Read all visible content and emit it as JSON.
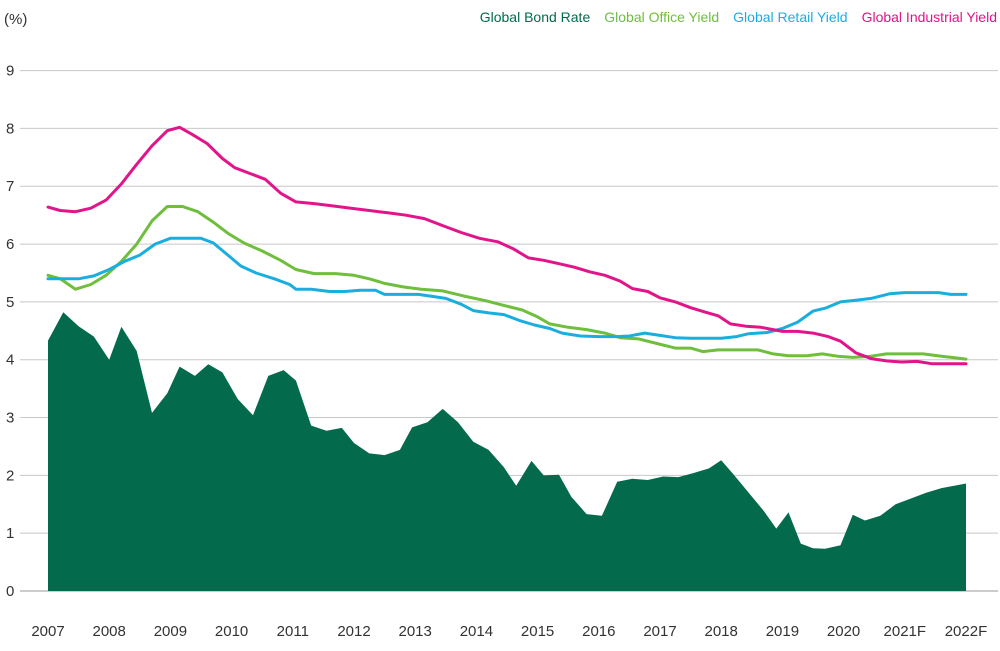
{
  "chart_data": {
    "type": "line",
    "ylabel": "(%)",
    "ylim": [
      0,
      9
    ],
    "yticks": [
      0,
      1,
      2,
      3,
      4,
      5,
      6,
      7,
      8,
      9
    ],
    "xticks": [
      "2007",
      "2008",
      "2009",
      "2010",
      "2011",
      "2012",
      "2013",
      "2014",
      "2015",
      "2016",
      "2017",
      "2018",
      "2019",
      "2020",
      "2021F",
      "2022F"
    ],
    "xlim": [
      2007,
      2022
    ],
    "grid": "horizontal",
    "legend_position": "top-right",
    "series": [
      {
        "name": "Global Bond Rate",
        "style": "area",
        "color": "#036b4c",
        "points": [
          [
            2007.0,
            4.33
          ],
          [
            2007.25,
            4.82
          ],
          [
            2007.5,
            4.58
          ],
          [
            2007.75,
            4.4
          ],
          [
            2008.0,
            4.0
          ],
          [
            2008.2,
            4.57
          ],
          [
            2008.45,
            4.15
          ],
          [
            2008.7,
            3.08
          ],
          [
            2008.95,
            3.42
          ],
          [
            2009.15,
            3.88
          ],
          [
            2009.4,
            3.72
          ],
          [
            2009.62,
            3.92
          ],
          [
            2009.85,
            3.78
          ],
          [
            2010.1,
            3.32
          ],
          [
            2010.35,
            3.04
          ],
          [
            2010.6,
            3.72
          ],
          [
            2010.85,
            3.82
          ],
          [
            2011.05,
            3.64
          ],
          [
            2011.3,
            2.86
          ],
          [
            2011.55,
            2.77
          ],
          [
            2011.8,
            2.82
          ],
          [
            2012.0,
            2.56
          ],
          [
            2012.25,
            2.38
          ],
          [
            2012.5,
            2.35
          ],
          [
            2012.75,
            2.44
          ],
          [
            2012.95,
            2.83
          ],
          [
            2013.2,
            2.92
          ],
          [
            2013.45,
            3.15
          ],
          [
            2013.7,
            2.92
          ],
          [
            2013.95,
            2.58
          ],
          [
            2014.2,
            2.44
          ],
          [
            2014.45,
            2.14
          ],
          [
            2014.65,
            1.82
          ],
          [
            2014.9,
            2.25
          ],
          [
            2015.1,
            2.0
          ],
          [
            2015.35,
            2.01
          ],
          [
            2015.55,
            1.63
          ],
          [
            2015.8,
            1.33
          ],
          [
            2016.05,
            1.3
          ],
          [
            2016.3,
            1.89
          ],
          [
            2016.55,
            1.94
          ],
          [
            2016.8,
            1.92
          ],
          [
            2017.05,
            1.98
          ],
          [
            2017.3,
            1.97
          ],
          [
            2017.55,
            2.04
          ],
          [
            2017.8,
            2.12
          ],
          [
            2018.0,
            2.26
          ],
          [
            2018.2,
            2.02
          ],
          [
            2018.45,
            1.7
          ],
          [
            2018.7,
            1.38
          ],
          [
            2018.9,
            1.08
          ],
          [
            2019.1,
            1.36
          ],
          [
            2019.3,
            0.82
          ],
          [
            2019.5,
            0.74
          ],
          [
            2019.7,
            0.73
          ],
          [
            2019.95,
            0.79
          ],
          [
            2020.15,
            1.32
          ],
          [
            2020.35,
            1.22
          ],
          [
            2020.6,
            1.3
          ],
          [
            2020.85,
            1.5
          ],
          [
            2021.1,
            1.6
          ],
          [
            2021.35,
            1.7
          ],
          [
            2021.6,
            1.78
          ],
          [
            2021.85,
            1.83
          ],
          [
            2022.0,
            1.86
          ]
        ]
      },
      {
        "name": "Global Office Yield",
        "style": "line",
        "color": "#6fbe3c",
        "points": [
          [
            2007.0,
            5.46
          ],
          [
            2007.2,
            5.4
          ],
          [
            2007.45,
            5.22
          ],
          [
            2007.7,
            5.3
          ],
          [
            2007.95,
            5.46
          ],
          [
            2008.2,
            5.7
          ],
          [
            2008.45,
            6.0
          ],
          [
            2008.7,
            6.4
          ],
          [
            2008.95,
            6.65
          ],
          [
            2009.2,
            6.65
          ],
          [
            2009.45,
            6.56
          ],
          [
            2009.7,
            6.38
          ],
          [
            2009.95,
            6.18
          ],
          [
            2010.2,
            6.02
          ],
          [
            2010.5,
            5.88
          ],
          [
            2010.8,
            5.72
          ],
          [
            2011.05,
            5.56
          ],
          [
            2011.35,
            5.49
          ],
          [
            2011.7,
            5.49
          ],
          [
            2012.0,
            5.46
          ],
          [
            2012.25,
            5.4
          ],
          [
            2012.5,
            5.32
          ],
          [
            2012.8,
            5.26
          ],
          [
            2013.1,
            5.22
          ],
          [
            2013.45,
            5.19
          ],
          [
            2013.8,
            5.1
          ],
          [
            2014.15,
            5.02
          ],
          [
            2014.45,
            4.94
          ],
          [
            2014.75,
            4.86
          ],
          [
            2015.0,
            4.74
          ],
          [
            2015.2,
            4.62
          ],
          [
            2015.5,
            4.56
          ],
          [
            2015.8,
            4.52
          ],
          [
            2016.1,
            4.46
          ],
          [
            2016.35,
            4.38
          ],
          [
            2016.65,
            4.36
          ],
          [
            2016.95,
            4.28
          ],
          [
            2017.25,
            4.2
          ],
          [
            2017.5,
            4.2
          ],
          [
            2017.7,
            4.14
          ],
          [
            2017.95,
            4.17
          ],
          [
            2018.25,
            4.17
          ],
          [
            2018.6,
            4.17
          ],
          [
            2018.85,
            4.1
          ],
          [
            2019.1,
            4.07
          ],
          [
            2019.4,
            4.07
          ],
          [
            2019.65,
            4.1
          ],
          [
            2019.9,
            4.06
          ],
          [
            2020.15,
            4.04
          ],
          [
            2020.45,
            4.06
          ],
          [
            2020.7,
            4.1
          ],
          [
            2021.0,
            4.1
          ],
          [
            2021.3,
            4.1
          ],
          [
            2021.6,
            4.06
          ],
          [
            2021.85,
            4.03
          ],
          [
            2022.0,
            4.01
          ]
        ]
      },
      {
        "name": "Global Retail Yield",
        "style": "line",
        "color": "#1aaede",
        "points": [
          [
            2007.0,
            5.4
          ],
          [
            2007.25,
            5.4
          ],
          [
            2007.5,
            5.4
          ],
          [
            2007.75,
            5.45
          ],
          [
            2008.0,
            5.56
          ],
          [
            2008.25,
            5.7
          ],
          [
            2008.5,
            5.81
          ],
          [
            2008.75,
            6.0
          ],
          [
            2009.0,
            6.1
          ],
          [
            2009.25,
            6.1
          ],
          [
            2009.5,
            6.1
          ],
          [
            2009.7,
            6.02
          ],
          [
            2009.95,
            5.8
          ],
          [
            2010.15,
            5.62
          ],
          [
            2010.4,
            5.5
          ],
          [
            2010.7,
            5.4
          ],
          [
            2010.95,
            5.3
          ],
          [
            2011.05,
            5.22
          ],
          [
            2011.3,
            5.22
          ],
          [
            2011.6,
            5.18
          ],
          [
            2011.85,
            5.18
          ],
          [
            2012.1,
            5.2
          ],
          [
            2012.35,
            5.2
          ],
          [
            2012.5,
            5.13
          ],
          [
            2012.8,
            5.13
          ],
          [
            2013.05,
            5.13
          ],
          [
            2013.25,
            5.1
          ],
          [
            2013.5,
            5.06
          ],
          [
            2013.75,
            4.96
          ],
          [
            2013.95,
            4.85
          ],
          [
            2014.2,
            4.81
          ],
          [
            2014.45,
            4.78
          ],
          [
            2014.7,
            4.68
          ],
          [
            2014.95,
            4.6
          ],
          [
            2015.2,
            4.54
          ],
          [
            2015.4,
            4.46
          ],
          [
            2015.7,
            4.41
          ],
          [
            2016.0,
            4.4
          ],
          [
            2016.3,
            4.4
          ],
          [
            2016.5,
            4.41
          ],
          [
            2016.75,
            4.46
          ],
          [
            2017.0,
            4.42
          ],
          [
            2017.25,
            4.38
          ],
          [
            2017.5,
            4.37
          ],
          [
            2017.75,
            4.37
          ],
          [
            2018.0,
            4.37
          ],
          [
            2018.25,
            4.4
          ],
          [
            2018.45,
            4.45
          ],
          [
            2018.75,
            4.47
          ],
          [
            2019.0,
            4.54
          ],
          [
            2019.25,
            4.65
          ],
          [
            2019.5,
            4.84
          ],
          [
            2019.7,
            4.89
          ],
          [
            2019.95,
            5.0
          ],
          [
            2020.2,
            5.03
          ],
          [
            2020.45,
            5.06
          ],
          [
            2020.75,
            5.14
          ],
          [
            2021.0,
            5.16
          ],
          [
            2021.3,
            5.16
          ],
          [
            2021.55,
            5.16
          ],
          [
            2021.75,
            5.13
          ],
          [
            2022.0,
            5.13
          ]
        ]
      },
      {
        "name": "Global Industrial Yield",
        "style": "line",
        "color": "#e2148a",
        "points": [
          [
            2007.0,
            6.64
          ],
          [
            2007.2,
            6.58
          ],
          [
            2007.45,
            6.56
          ],
          [
            2007.7,
            6.62
          ],
          [
            2007.95,
            6.76
          ],
          [
            2008.2,
            7.04
          ],
          [
            2008.45,
            7.38
          ],
          [
            2008.7,
            7.7
          ],
          [
            2008.95,
            7.96
          ],
          [
            2009.15,
            8.02
          ],
          [
            2009.35,
            7.9
          ],
          [
            2009.6,
            7.74
          ],
          [
            2009.85,
            7.48
          ],
          [
            2010.05,
            7.32
          ],
          [
            2010.3,
            7.22
          ],
          [
            2010.55,
            7.12
          ],
          [
            2010.8,
            6.88
          ],
          [
            2011.05,
            6.73
          ],
          [
            2011.35,
            6.7
          ],
          [
            2011.65,
            6.66
          ],
          [
            2011.95,
            6.62
          ],
          [
            2012.25,
            6.58
          ],
          [
            2012.55,
            6.54
          ],
          [
            2012.85,
            6.5
          ],
          [
            2013.15,
            6.44
          ],
          [
            2013.45,
            6.32
          ],
          [
            2013.75,
            6.2
          ],
          [
            2014.05,
            6.1
          ],
          [
            2014.35,
            6.04
          ],
          [
            2014.6,
            5.92
          ],
          [
            2014.85,
            5.76
          ],
          [
            2015.1,
            5.72
          ],
          [
            2015.35,
            5.66
          ],
          [
            2015.6,
            5.6
          ],
          [
            2015.85,
            5.52
          ],
          [
            2016.1,
            5.46
          ],
          [
            2016.35,
            5.36
          ],
          [
            2016.55,
            5.23
          ],
          [
            2016.8,
            5.18
          ],
          [
            2017.0,
            5.07
          ],
          [
            2017.25,
            5.0
          ],
          [
            2017.5,
            4.9
          ],
          [
            2017.75,
            4.82
          ],
          [
            2017.95,
            4.76
          ],
          [
            2018.15,
            4.62
          ],
          [
            2018.4,
            4.58
          ],
          [
            2018.65,
            4.56
          ],
          [
            2018.85,
            4.52
          ],
          [
            2019.0,
            4.49
          ],
          [
            2019.25,
            4.49
          ],
          [
            2019.5,
            4.46
          ],
          [
            2019.75,
            4.4
          ],
          [
            2019.95,
            4.32
          ],
          [
            2020.2,
            4.12
          ],
          [
            2020.45,
            4.02
          ],
          [
            2020.7,
            3.98
          ],
          [
            2020.95,
            3.96
          ],
          [
            2021.2,
            3.97
          ],
          [
            2021.45,
            3.93
          ],
          [
            2021.7,
            3.93
          ],
          [
            2022.0,
            3.93
          ]
        ]
      }
    ]
  }
}
